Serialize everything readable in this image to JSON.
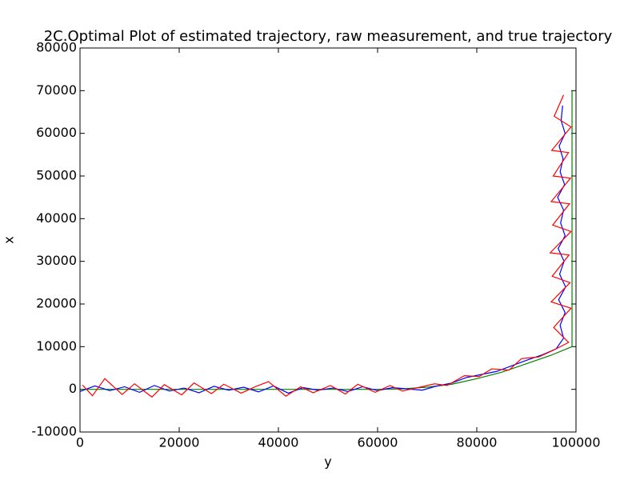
{
  "chart_data": {
    "type": "line",
    "title": "2C.Optimal Plot of estimated trajectory, raw measurement, and true trajectory",
    "x_label": "y",
    "y_label": "x",
    "xlim": [
      0,
      100000
    ],
    "ylim": [
      -10000,
      80000
    ],
    "xticks": [
      0,
      20000,
      40000,
      60000,
      80000,
      100000
    ],
    "yticks": [
      -10000,
      0,
      10000,
      20000,
      30000,
      40000,
      50000,
      60000,
      70000,
      80000
    ],
    "grid": false,
    "series": [
      {
        "color": "#008000",
        "x": [
          0,
          20000,
          40000,
          60000,
          65000,
          70000,
          75000,
          80000,
          85000,
          90000,
          95000,
          99200,
          99200
        ],
        "values": [
          0,
          0,
          0,
          0,
          100,
          500,
          1200,
          2500,
          4000,
          6000,
          8000,
          10000,
          70000
        ]
      },
      {
        "color": "#0000ff",
        "x": [
          0,
          3000,
          6000,
          9000,
          12000,
          15000,
          18000,
          21000,
          24000,
          27000,
          30000,
          33000,
          36000,
          39000,
          42000,
          45000,
          48000,
          51000,
          54000,
          57000,
          60000,
          63000,
          66000,
          69000,
          72000,
          75000,
          78000,
          81000,
          84000,
          87000,
          90000,
          93000,
          96000,
          97500,
          96800,
          97800,
          96500,
          97900,
          96700,
          97600,
          96400,
          97800,
          96900,
          97500,
          96300,
          97700,
          96800,
          97400,
          96600,
          97800,
          97000,
          97300
        ],
        "values": [
          -500,
          800,
          -300,
          600,
          -700,
          900,
          -400,
          300,
          -800,
          700,
          -200,
          500,
          -600,
          800,
          -900,
          400,
          -200,
          300,
          -500,
          600,
          -300,
          400,
          100,
          -200,
          800,
          1500,
          2800,
          3500,
          4200,
          5500,
          6800,
          8000,
          9500,
          12000,
          15000,
          18000,
          21000,
          24000,
          27000,
          30000,
          33000,
          36000,
          39000,
          42000,
          45000,
          48000,
          51000,
          54000,
          57000,
          60000,
          63000,
          66500
        ]
      },
      {
        "color": "#ff0000",
        "x": [
          500,
          2500,
          5000,
          8500,
          11000,
          14500,
          17000,
          20500,
          23000,
          26500,
          29000,
          32500,
          35500,
          38000,
          41500,
          44500,
          47000,
          50500,
          53500,
          56000,
          59500,
          62500,
          65000,
          68500,
          71500,
          74000,
          77500,
          80500,
          83000,
          86500,
          89000,
          92500,
          95500,
          98500,
          95500,
          99000,
          95000,
          98800,
          95200,
          98600,
          94800,
          99000,
          95300,
          98700,
          95000,
          98900,
          95400,
          98500,
          95100,
          99000,
          95600,
          97500
        ],
        "values": [
          1000,
          -1500,
          2500,
          -1200,
          1300,
          -1800,
          1100,
          -1300,
          1500,
          -1000,
          1200,
          -900,
          700,
          1800,
          -1600,
          600,
          -800,
          900,
          -1100,
          1200,
          -700,
          900,
          -400,
          500,
          1300,
          900,
          3200,
          3000,
          4800,
          4500,
          7200,
          7600,
          9200,
          11000,
          14500,
          19000,
          20500,
          25000,
          26500,
          31500,
          32000,
          37000,
          38500,
          43500,
          44000,
          49500,
          50000,
          55500,
          56000,
          61500,
          64000,
          69000
        ]
      }
    ]
  }
}
